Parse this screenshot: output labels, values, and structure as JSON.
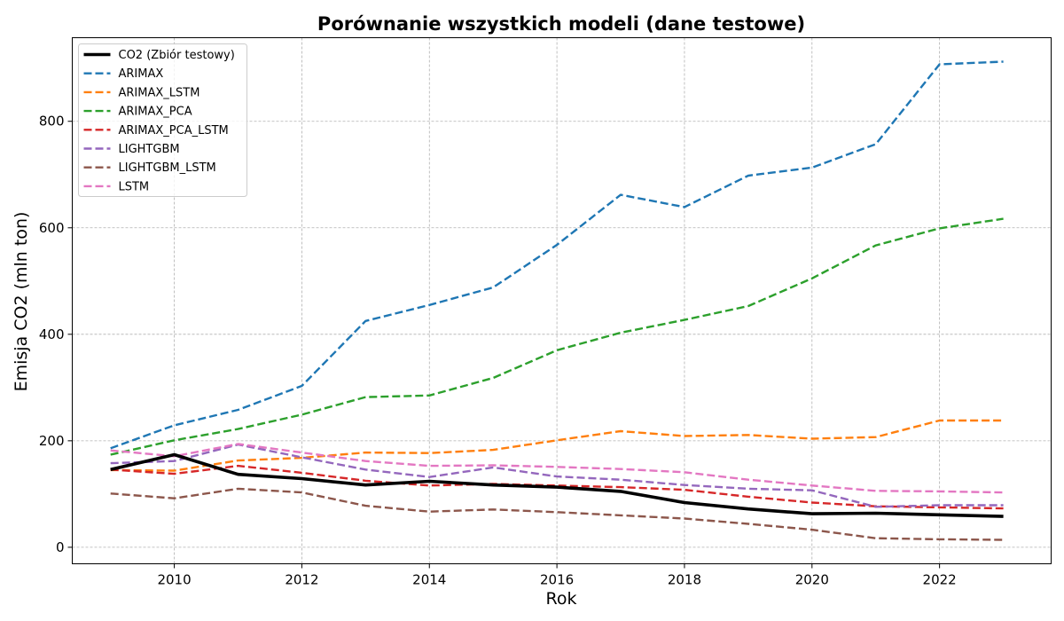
{
  "chart_data": {
    "type": "line",
    "title": "Porównanie wszystkich modeli (dane testowe)",
    "xlabel": "Rok",
    "ylabel": "Emisja CO2 (mln ton)",
    "xlim": [
      2008.4,
      2023.75
    ],
    "ylim": [
      -31,
      957
    ],
    "xticks": [
      2010,
      2012,
      2014,
      2016,
      2018,
      2020,
      2022
    ],
    "yticks": [
      0,
      200,
      400,
      600,
      800
    ],
    "grid": true,
    "legend_position": "top-left",
    "x": [
      2009,
      2010,
      2011,
      2012,
      2013,
      2014,
      2015,
      2016,
      2017,
      2018,
      2019,
      2020,
      2021,
      2022,
      2023
    ],
    "series": [
      {
        "name": "CO2 (Zbiór testowy)",
        "color": "#000000",
        "style": "solid",
        "values": [
          146,
          174,
          137,
          129,
          117,
          124,
          117,
          113,
          105,
          84,
          72,
          63,
          64,
          61,
          58
        ]
      },
      {
        "name": "ARIMAX",
        "color": "#1f77b4",
        "style": "dashed",
        "values": [
          186,
          229,
          258,
          303,
          425,
          455,
          488,
          568,
          662,
          639,
          698,
          713,
          757,
          907,
          912
        ]
      },
      {
        "name": "ARIMAX_LSTM",
        "color": "#ff7f0e",
        "style": "dashed",
        "values": [
          145,
          144,
          163,
          168,
          178,
          177,
          183,
          201,
          218,
          209,
          211,
          204,
          207,
          238,
          238
        ]
      },
      {
        "name": "ARIMAX_PCA",
        "color": "#2ca02c",
        "style": "dashed",
        "values": [
          174,
          201,
          222,
          249,
          282,
          285,
          318,
          370,
          403,
          427,
          453,
          505,
          567,
          599,
          617
        ]
      },
      {
        "name": "ARIMAX_PCA_LSTM",
        "color": "#d62728",
        "style": "dashed",
        "values": [
          146,
          138,
          153,
          140,
          125,
          116,
          119,
          116,
          113,
          108,
          95,
          84,
          77,
          75,
          73
        ]
      },
      {
        "name": "LIGHTGBM",
        "color": "#9467bd",
        "style": "dashed",
        "values": [
          158,
          162,
          193,
          169,
          146,
          132,
          150,
          133,
          127,
          117,
          110,
          107,
          76,
          79,
          79
        ]
      },
      {
        "name": "LIGHTGBM_LSTM",
        "color": "#8c564b",
        "style": "dashed",
        "values": [
          101,
          92,
          110,
          103,
          78,
          67,
          71,
          66,
          60,
          54,
          44,
          33,
          17,
          15,
          14
        ]
      },
      {
        "name": "LSTM",
        "color": "#e377c2",
        "style": "dashed",
        "values": [
          182,
          171,
          194,
          178,
          162,
          153,
          154,
          151,
          147,
          141,
          127,
          116,
          106,
          105,
          103
        ]
      }
    ]
  }
}
